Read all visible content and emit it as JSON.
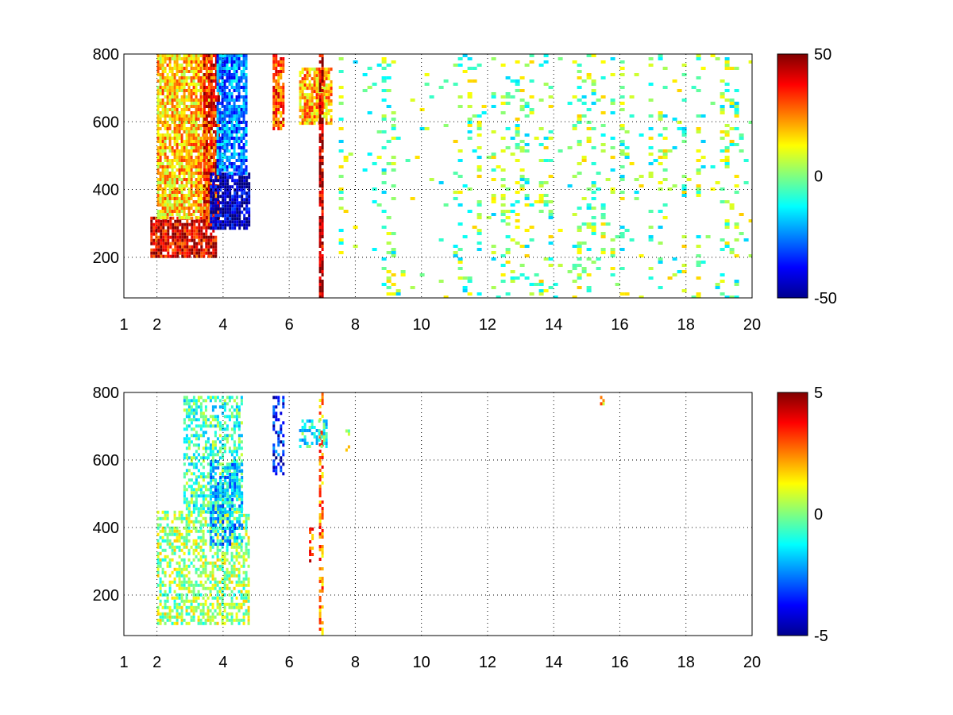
{
  "chart_data": [
    {
      "type": "heatmap",
      "title": "",
      "xlabel": "",
      "ylabel": "",
      "xlim": [
        1,
        20
      ],
      "ylim": [
        80,
        800
      ],
      "x_ticks": [
        "1",
        "2",
        "4",
        "6",
        "8",
        "10",
        "12",
        "14",
        "16",
        "18",
        "20"
      ],
      "x_tick_values": [
        1,
        2,
        4,
        6,
        8,
        10,
        12,
        14,
        16,
        18,
        20
      ],
      "y_ticks": [
        "200",
        "400",
        "600",
        "800"
      ],
      "y_tick_values": [
        200,
        400,
        600,
        800
      ],
      "grid": "dotted",
      "colormap": "jet",
      "colorbar": {
        "min": -50,
        "max": 50,
        "tick_labels": [
          "50",
          "0",
          "-50"
        ],
        "tick_values": [
          50,
          0,
          -50
        ]
      },
      "features": [
        {
          "x": [
            1.8,
            3.8
          ],
          "y": [
            200,
            320
          ],
          "value": 40
        },
        {
          "x": [
            2.0,
            3.6
          ],
          "y": [
            320,
            800
          ],
          "value": 18
        },
        {
          "x": [
            3.4,
            3.9
          ],
          "y": [
            300,
            800
          ],
          "value": 35
        },
        {
          "x": [
            3.6,
            4.8
          ],
          "y": [
            290,
            450
          ],
          "value": -45
        },
        {
          "x": [
            3.8,
            4.7
          ],
          "y": [
            450,
            800
          ],
          "value": -25
        },
        {
          "x": [
            5.5,
            5.8
          ],
          "y": [
            580,
            800
          ],
          "value": 30
        },
        {
          "x": [
            6.3,
            7.3
          ],
          "y": [
            600,
            760
          ],
          "value": 20
        },
        {
          "x": [
            6.9,
            7.0
          ],
          "y": [
            80,
            800
          ],
          "value": 45
        },
        {
          "x": [
            7.5,
            20.0
          ],
          "y": [
            80,
            800
          ],
          "value": 0
        }
      ]
    },
    {
      "type": "heatmap",
      "title": "",
      "xlabel": "",
      "ylabel": "",
      "xlim": [
        1,
        20
      ],
      "ylim": [
        80,
        800
      ],
      "x_ticks": [
        "1",
        "2",
        "4",
        "6",
        "8",
        "10",
        "12",
        "14",
        "16",
        "18",
        "20"
      ],
      "x_tick_values": [
        1,
        2,
        4,
        6,
        8,
        10,
        12,
        14,
        16,
        18,
        20
      ],
      "y_ticks": [
        "200",
        "400",
        "600",
        "800"
      ],
      "y_tick_values": [
        200,
        400,
        600,
        800
      ],
      "grid": "dotted",
      "colormap": "jet",
      "colorbar": {
        "min": -5,
        "max": 5,
        "tick_labels": [
          "5",
          "0",
          "-5"
        ],
        "tick_values": [
          5,
          0,
          -5
        ]
      },
      "features": [
        {
          "x": [
            2.0,
            4.8
          ],
          "y": [
            120,
            450
          ],
          "value": 0.3
        },
        {
          "x": [
            2.8,
            4.6
          ],
          "y": [
            450,
            790
          ],
          "value": -0.6
        },
        {
          "x": [
            3.6,
            4.6
          ],
          "y": [
            350,
            600
          ],
          "value": -1.8
        },
        {
          "x": [
            5.5,
            5.8
          ],
          "y": [
            560,
            790
          ],
          "value": -3.5
        },
        {
          "x": [
            6.6,
            6.7
          ],
          "y": [
            300,
            400
          ],
          "value": 3.0
        },
        {
          "x": [
            6.9,
            7.0
          ],
          "y": [
            80,
            800
          ],
          "value": 2.5
        },
        {
          "x": [
            6.3,
            7.1
          ],
          "y": [
            640,
            720
          ],
          "value": -1.0
        },
        {
          "x": [
            7.7,
            7.8
          ],
          "y": [
            630,
            700
          ],
          "value": 0.8
        },
        {
          "x": [
            15.4,
            15.5
          ],
          "y": [
            760,
            790
          ],
          "value": 1.8
        }
      ]
    }
  ]
}
